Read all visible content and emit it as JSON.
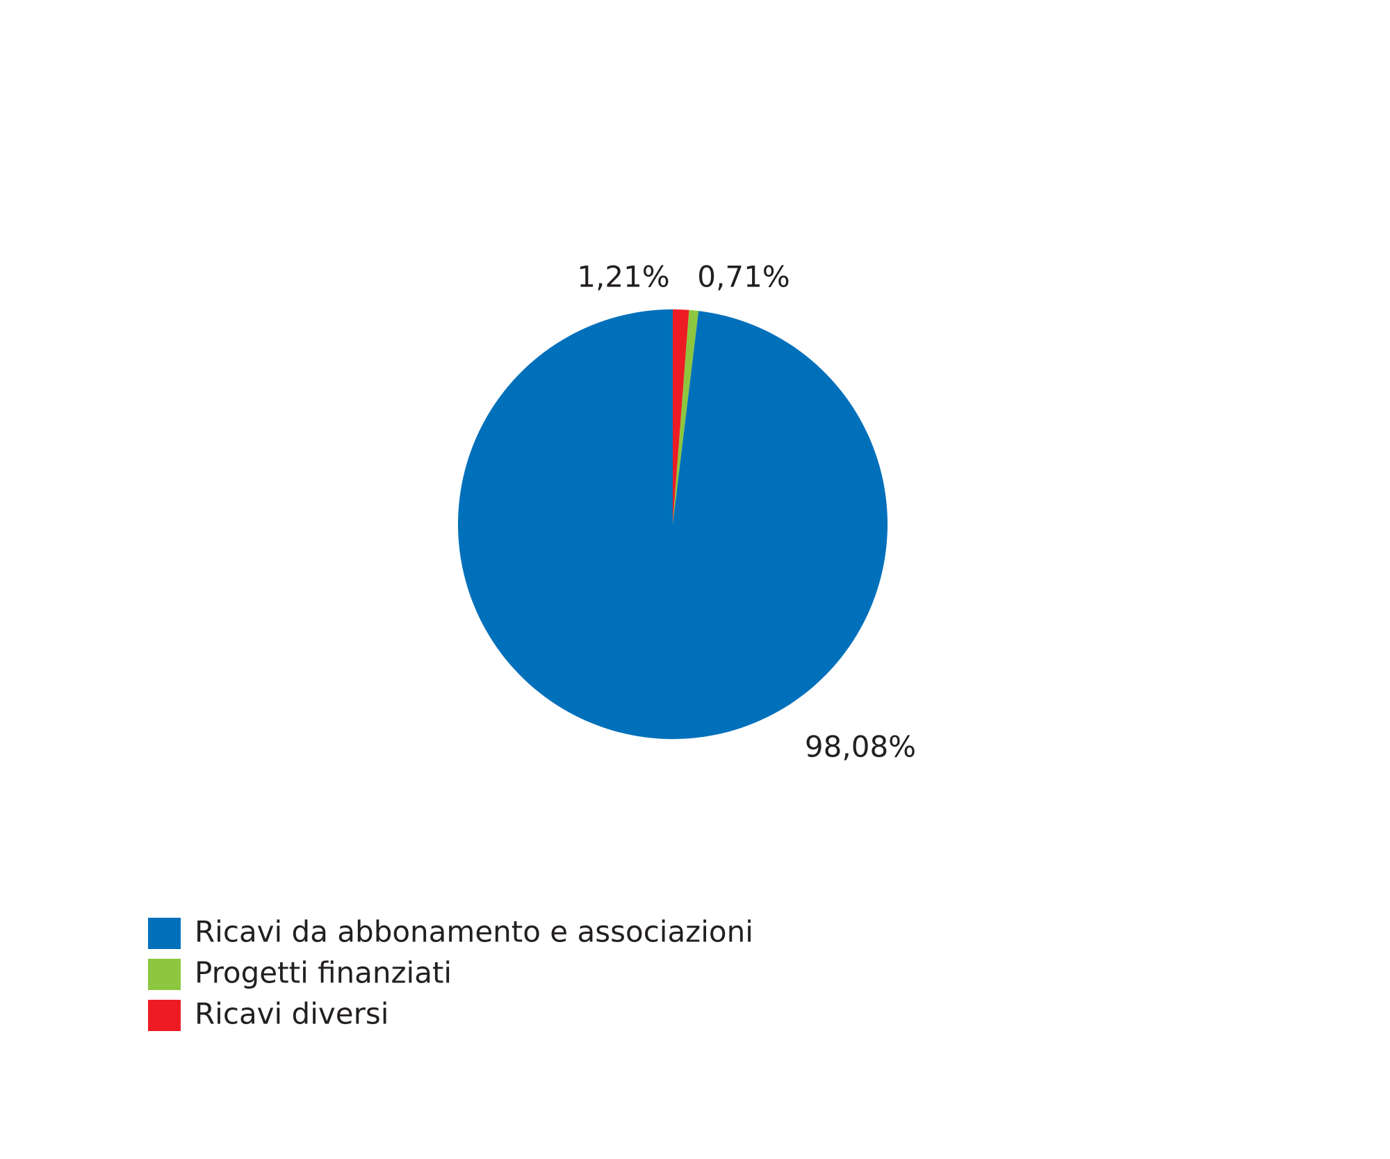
{
  "chart_data": {
    "type": "pie",
    "categories": [
      "Ricavi da abbonamento e associazioni",
      "Progetti finanziati",
      "Ricavi diversi"
    ],
    "values": [
      98.08,
      0.71,
      1.21
    ],
    "value_labels": [
      "98,08%",
      "0,71%",
      "1,21%"
    ],
    "colors": [
      "#0070bb",
      "#8dc63f",
      "#ed1c24"
    ]
  }
}
